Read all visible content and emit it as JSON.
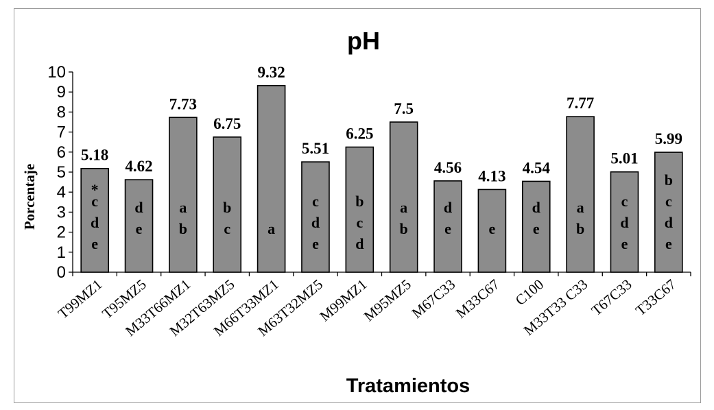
{
  "chart_data": {
    "type": "bar",
    "title": "pH",
    "xlabel": "Tratamientos",
    "ylabel": "Porcentaje",
    "ylim": [
      0,
      10
    ],
    "yticks": [
      0,
      1,
      2,
      3,
      4,
      5,
      6,
      7,
      8,
      9,
      10
    ],
    "grid": false,
    "legend": "none",
    "bar_color": "#8c8c8c",
    "categories": [
      "T99MZ1",
      "T95MZ5",
      "M33T66MZ1",
      "M32T63MZ5",
      "M66T33MZ1",
      "M63T32MZ5",
      "M99MZ1",
      "M95MZ5",
      "M67C33",
      "M33C67",
      "C100",
      "M33T33 C33",
      "T67C33",
      "T33C67"
    ],
    "values": [
      5.18,
      4.62,
      7.73,
      6.75,
      9.32,
      5.51,
      6.25,
      7.5,
      4.56,
      4.13,
      4.54,
      7.77,
      5.01,
      5.99
    ],
    "value_labels": [
      "5.18",
      "4.62",
      "7.73",
      "6.75",
      "9.32",
      "5.51",
      "6.25",
      "7.5",
      "4.56",
      "4.13",
      "4.54",
      "7.77",
      "5.01",
      "5.99"
    ],
    "group_letters": [
      [
        "c",
        "d",
        "e"
      ],
      [
        "d",
        "e"
      ],
      [
        "a",
        "b"
      ],
      [
        "b",
        "c"
      ],
      [
        "a"
      ],
      [
        "c",
        "d",
        "e"
      ],
      [
        "b",
        "c",
        "d"
      ],
      [
        "a",
        "b"
      ],
      [
        "d",
        "e"
      ],
      [
        "e"
      ],
      [
        "d",
        "e"
      ],
      [
        "a",
        "b"
      ],
      [
        "c",
        "d",
        "e"
      ],
      [
        "b",
        "c",
        "d",
        "e"
      ]
    ],
    "annotation": "*"
  }
}
